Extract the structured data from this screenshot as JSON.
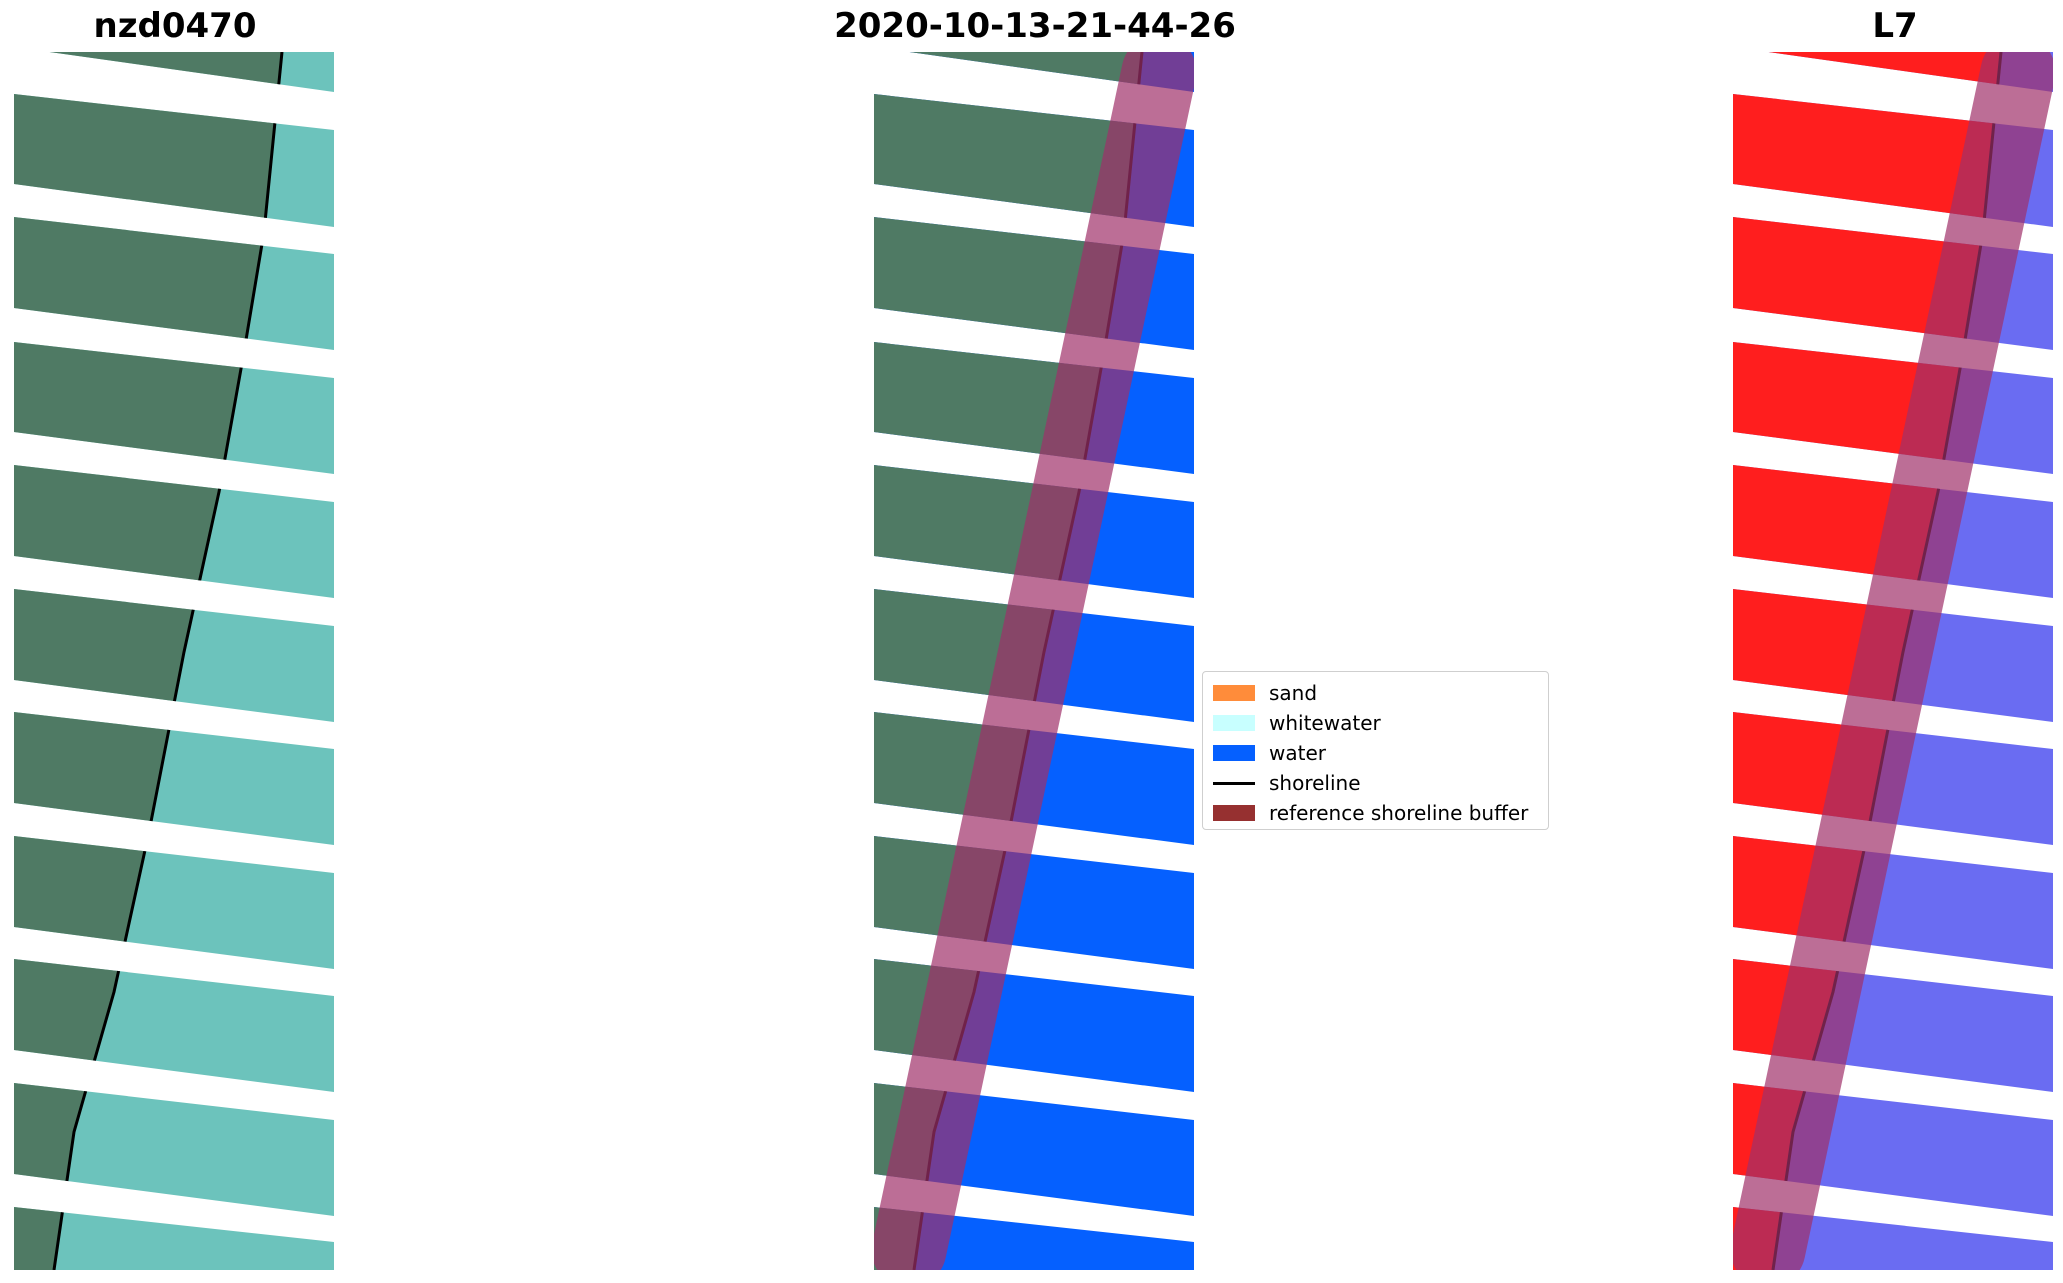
{
  "titles": {
    "left": "nzd0470",
    "center": "2020-10-13-21-44-26",
    "right": "L7"
  },
  "legend": {
    "items": [
      {
        "label": "sand",
        "color": "#ff8c3a",
        "kind": "patch"
      },
      {
        "label": "whitewater",
        "color": "#c8ffff",
        "kind": "patch"
      },
      {
        "label": "water",
        "color": "#0560ff",
        "kind": "patch"
      },
      {
        "label": "shoreline",
        "color": "#000000",
        "kind": "line"
      },
      {
        "label": "reference shoreline buffer",
        "color": "#8b1a1a",
        "kind": "patch"
      }
    ]
  },
  "colors": {
    "land_rgb": "#4f7a64",
    "sea_rgb": "#6cc3bc",
    "water_class": "#0560ff",
    "land_index": "#ff1e1e",
    "water_index": "#6a6cf2",
    "buffer": "#a0306a"
  }
}
